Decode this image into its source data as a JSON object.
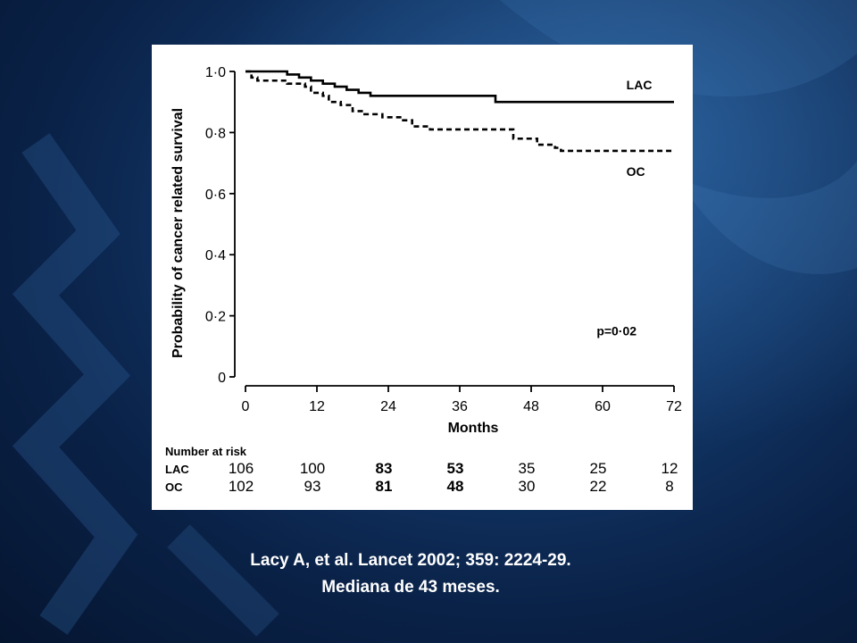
{
  "caption": {
    "line1": "Lacy A, et al. Lancet 2002; 359: 2224-29.",
    "line2": "Mediana de 43 meses."
  },
  "colors": {
    "background": "#0a2248",
    "figure_bg": "#ffffff",
    "ink": "#000000",
    "caption_text": "#ffffff"
  },
  "chart_data": {
    "type": "line",
    "title": "",
    "xlabel": "Months",
    "ylabel": "Probability of cancer related survival",
    "xlim": [
      0,
      72
    ],
    "ylim": [
      0,
      1
    ],
    "x_ticks": [
      0,
      12,
      24,
      36,
      48,
      60,
      72
    ],
    "y_ticks": [
      0,
      0.2,
      0.4,
      0.6,
      0.8,
      1.0
    ],
    "y_tick_labels": [
      "0",
      "0·2",
      "0·4",
      "0·6",
      "0·8",
      "1·0"
    ],
    "grid": false,
    "series": [
      {
        "name": "LAC",
        "style": "solid",
        "points": [
          [
            0,
            1.0
          ],
          [
            7,
            0.99
          ],
          [
            9,
            0.98
          ],
          [
            11,
            0.97
          ],
          [
            13,
            0.96
          ],
          [
            15,
            0.95
          ],
          [
            17,
            0.94
          ],
          [
            19,
            0.93
          ],
          [
            21,
            0.92
          ],
          [
            41,
            0.92
          ],
          [
            42,
            0.9
          ],
          [
            72,
            0.9
          ]
        ]
      },
      {
        "name": "OC",
        "style": "dashed",
        "points": [
          [
            0,
            1.0
          ],
          [
            1,
            0.98
          ],
          [
            2,
            0.97
          ],
          [
            7,
            0.96
          ],
          [
            10,
            0.95
          ],
          [
            11,
            0.93
          ],
          [
            13,
            0.92
          ],
          [
            14,
            0.9
          ],
          [
            16,
            0.89
          ],
          [
            18,
            0.87
          ],
          [
            20,
            0.86
          ],
          [
            23,
            0.85
          ],
          [
            26,
            0.84
          ],
          [
            28,
            0.82
          ],
          [
            31,
            0.81
          ],
          [
            43,
            0.81
          ],
          [
            45,
            0.78
          ],
          [
            49,
            0.76
          ],
          [
            52,
            0.75
          ],
          [
            53,
            0.74
          ],
          [
            72,
            0.74
          ]
        ]
      }
    ],
    "annotations": [
      {
        "text": "p=0·02",
        "x": 59,
        "y": 0.15
      }
    ],
    "risk_table": {
      "title": "Number at risk",
      "rows": [
        {
          "label": "LAC",
          "values": [
            106,
            100,
            83,
            53,
            35,
            25,
            12
          ]
        },
        {
          "label": "OC",
          "values": [
            102,
            93,
            81,
            48,
            30,
            22,
            8
          ]
        }
      ]
    }
  }
}
